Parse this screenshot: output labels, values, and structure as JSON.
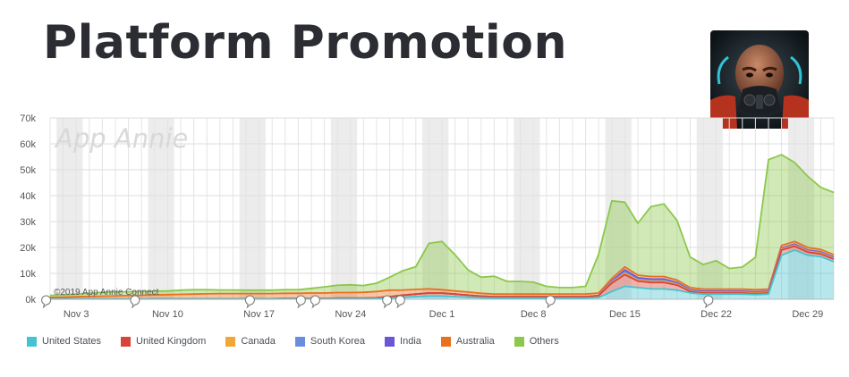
{
  "title": "Platform Promotion",
  "watermark": "App Annie",
  "copyright": "©2019 App Annie Connect",
  "chart_data": {
    "type": "area",
    "stacked": true,
    "y_ticks": [
      "0k",
      "10k",
      "20k",
      "30k",
      "40k",
      "50k",
      "60k",
      "70k"
    ],
    "ylim": [
      0,
      70000
    ],
    "x_tick_labels": [
      {
        "label": "Nov 3",
        "day": 2
      },
      {
        "label": "Nov 10",
        "day": 9
      },
      {
        "label": "Nov 17",
        "day": 16
      },
      {
        "label": "Nov 24",
        "day": 23
      },
      {
        "label": "Dec 1",
        "day": 30
      },
      {
        "label": "Dec 8",
        "day": 37
      },
      {
        "label": "Dec 15",
        "day": 44
      },
      {
        "label": "Dec 22",
        "day": 51
      },
      {
        "label": "Dec 29",
        "day": 58
      }
    ],
    "x_days": [
      0,
      1,
      2,
      3,
      4,
      5,
      6,
      7,
      8,
      9,
      10,
      11,
      12,
      13,
      14,
      15,
      16,
      17,
      18,
      19,
      20,
      21,
      22,
      23,
      24,
      25,
      26,
      27,
      28,
      29,
      30,
      31,
      32,
      33,
      34,
      35,
      36,
      37,
      38,
      39,
      40,
      41,
      42,
      43,
      44,
      45,
      46,
      47,
      48,
      49,
      50,
      51,
      52,
      53,
      54,
      55,
      56,
      57,
      58,
      59,
      60
    ],
    "series": [
      {
        "name": "United States",
        "color": "#45c3d0",
        "values": [
          100,
          100,
          100,
          100,
          100,
          100,
          100,
          100,
          100,
          100,
          100,
          100,
          100,
          100,
          100,
          100,
          100,
          100,
          150,
          150,
          150,
          150,
          200,
          200,
          200,
          300,
          500,
          800,
          1000,
          1200,
          1200,
          1000,
          800,
          600,
          500,
          500,
          500,
          500,
          500,
          500,
          500,
          500,
          700,
          3000,
          5000,
          4500,
          4000,
          4000,
          3500,
          2500,
          2000,
          2000,
          2000,
          2000,
          1800,
          2000,
          17000,
          19000,
          17000,
          16500,
          14500
        ]
      },
      {
        "name": "United Kingdom",
        "color": "#d9443a",
        "values": [
          100,
          100,
          100,
          100,
          100,
          100,
          100,
          100,
          100,
          100,
          100,
          100,
          100,
          100,
          100,
          100,
          100,
          100,
          150,
          150,
          150,
          150,
          200,
          200,
          200,
          300,
          500,
          800,
          1000,
          1200,
          1200,
          1000,
          800,
          600,
          500,
          500,
          500,
          500,
          500,
          500,
          500,
          500,
          700,
          3200,
          4500,
          2500,
          2500,
          2500,
          2000,
          500,
          400,
          400,
          400,
          400,
          400,
          400,
          2000,
          1500,
          1200,
          1000,
          1000
        ]
      },
      {
        "name": "Canada",
        "color": "#f0a734",
        "values": [
          0,
          0,
          0,
          0,
          0,
          0,
          0,
          0,
          0,
          0,
          0,
          0,
          0,
          0,
          0,
          0,
          0,
          0,
          0,
          0,
          0,
          0,
          0,
          0,
          0,
          0,
          0,
          0,
          0,
          0,
          0,
          0,
          0,
          0,
          0,
          0,
          0,
          0,
          0,
          0,
          0,
          0,
          0,
          300,
          500,
          400,
          400,
          400,
          300,
          200,
          200,
          200,
          200,
          200,
          200,
          200,
          300,
          300,
          300,
          300,
          300
        ]
      },
      {
        "name": "South Korea",
        "color": "#6a8de0",
        "values": [
          0,
          0,
          0,
          0,
          0,
          0,
          0,
          0,
          0,
          0,
          0,
          0,
          0,
          0,
          0,
          0,
          0,
          0,
          0,
          0,
          0,
          0,
          0,
          0,
          0,
          0,
          0,
          0,
          0,
          0,
          0,
          0,
          0,
          0,
          0,
          0,
          0,
          0,
          0,
          0,
          0,
          0,
          0,
          200,
          500,
          400,
          400,
          400,
          300,
          200,
          200,
          200,
          200,
          200,
          200,
          200,
          200,
          200,
          200,
          200,
          200
        ]
      },
      {
        "name": "India",
        "color": "#6b57d6",
        "values": [
          0,
          0,
          0,
          0,
          0,
          0,
          0,
          0,
          0,
          0,
          0,
          0,
          0,
          0,
          0,
          0,
          0,
          0,
          0,
          0,
          0,
          0,
          0,
          0,
          0,
          0,
          0,
          0,
          0,
          0,
          0,
          0,
          0,
          0,
          0,
          0,
          0,
          0,
          0,
          0,
          0,
          0,
          0,
          300,
          800,
          500,
          500,
          500,
          400,
          300,
          300,
          300,
          300,
          300,
          300,
          300,
          300,
          300,
          300,
          300,
          300
        ]
      },
      {
        "name": "Australia",
        "color": "#e8701e",
        "values": [
          500,
          600,
          800,
          900,
          1000,
          1100,
          1200,
          1300,
          1500,
          1600,
          1700,
          1800,
          1900,
          2000,
          2000,
          2000,
          2000,
          2000,
          2000,
          2000,
          2100,
          2100,
          2200,
          2200,
          2300,
          2400,
          2500,
          2000,
          1800,
          1600,
          1300,
          1200,
          1200,
          1100,
          1000,
          1000,
          1000,
          1000,
          1000,
          1000,
          1000,
          1000,
          1000,
          1000,
          1200,
          1000,
          1000,
          1000,
          900,
          800,
          800,
          800,
          800,
          800,
          800,
          800,
          1000,
          1000,
          1000,
          900,
          900
        ]
      },
      {
        "name": "Others",
        "color": "#8cc84b",
        "values": [
          800,
          900,
          1000,
          1200,
          1500,
          1600,
          1500,
          1500,
          1400,
          1400,
          1600,
          1700,
          1600,
          1400,
          1400,
          1300,
          1300,
          1300,
          1400,
          1400,
          1800,
          2400,
          2800,
          3000,
          2600,
          3200,
          5000,
          7400,
          8800,
          17600,
          18600,
          14000,
          8500,
          6200,
          6900,
          4900,
          4900,
          4600,
          3000,
          2500,
          2500,
          3000,
          15000,
          30000,
          25000,
          20000,
          27000,
          28000,
          23000,
          11800,
          9500,
          11000,
          8000,
          8500,
          12500,
          50000,
          35000,
          30500,
          27500,
          24000,
          24000
        ]
      }
    ]
  },
  "legend": [
    {
      "label": "United States",
      "color": "#45c3d0"
    },
    {
      "label": "United Kingdom",
      "color": "#d9443a"
    },
    {
      "label": "Canada",
      "color": "#f0a734"
    },
    {
      "label": "South Korea",
      "color": "#6a8de0"
    },
    {
      "label": "India",
      "color": "#6b57d6"
    },
    {
      "label": "Australia",
      "color": "#e8701e"
    },
    {
      "label": "Others",
      "color": "#8cc84b"
    }
  ],
  "icon": "game-character-avatar-icon"
}
